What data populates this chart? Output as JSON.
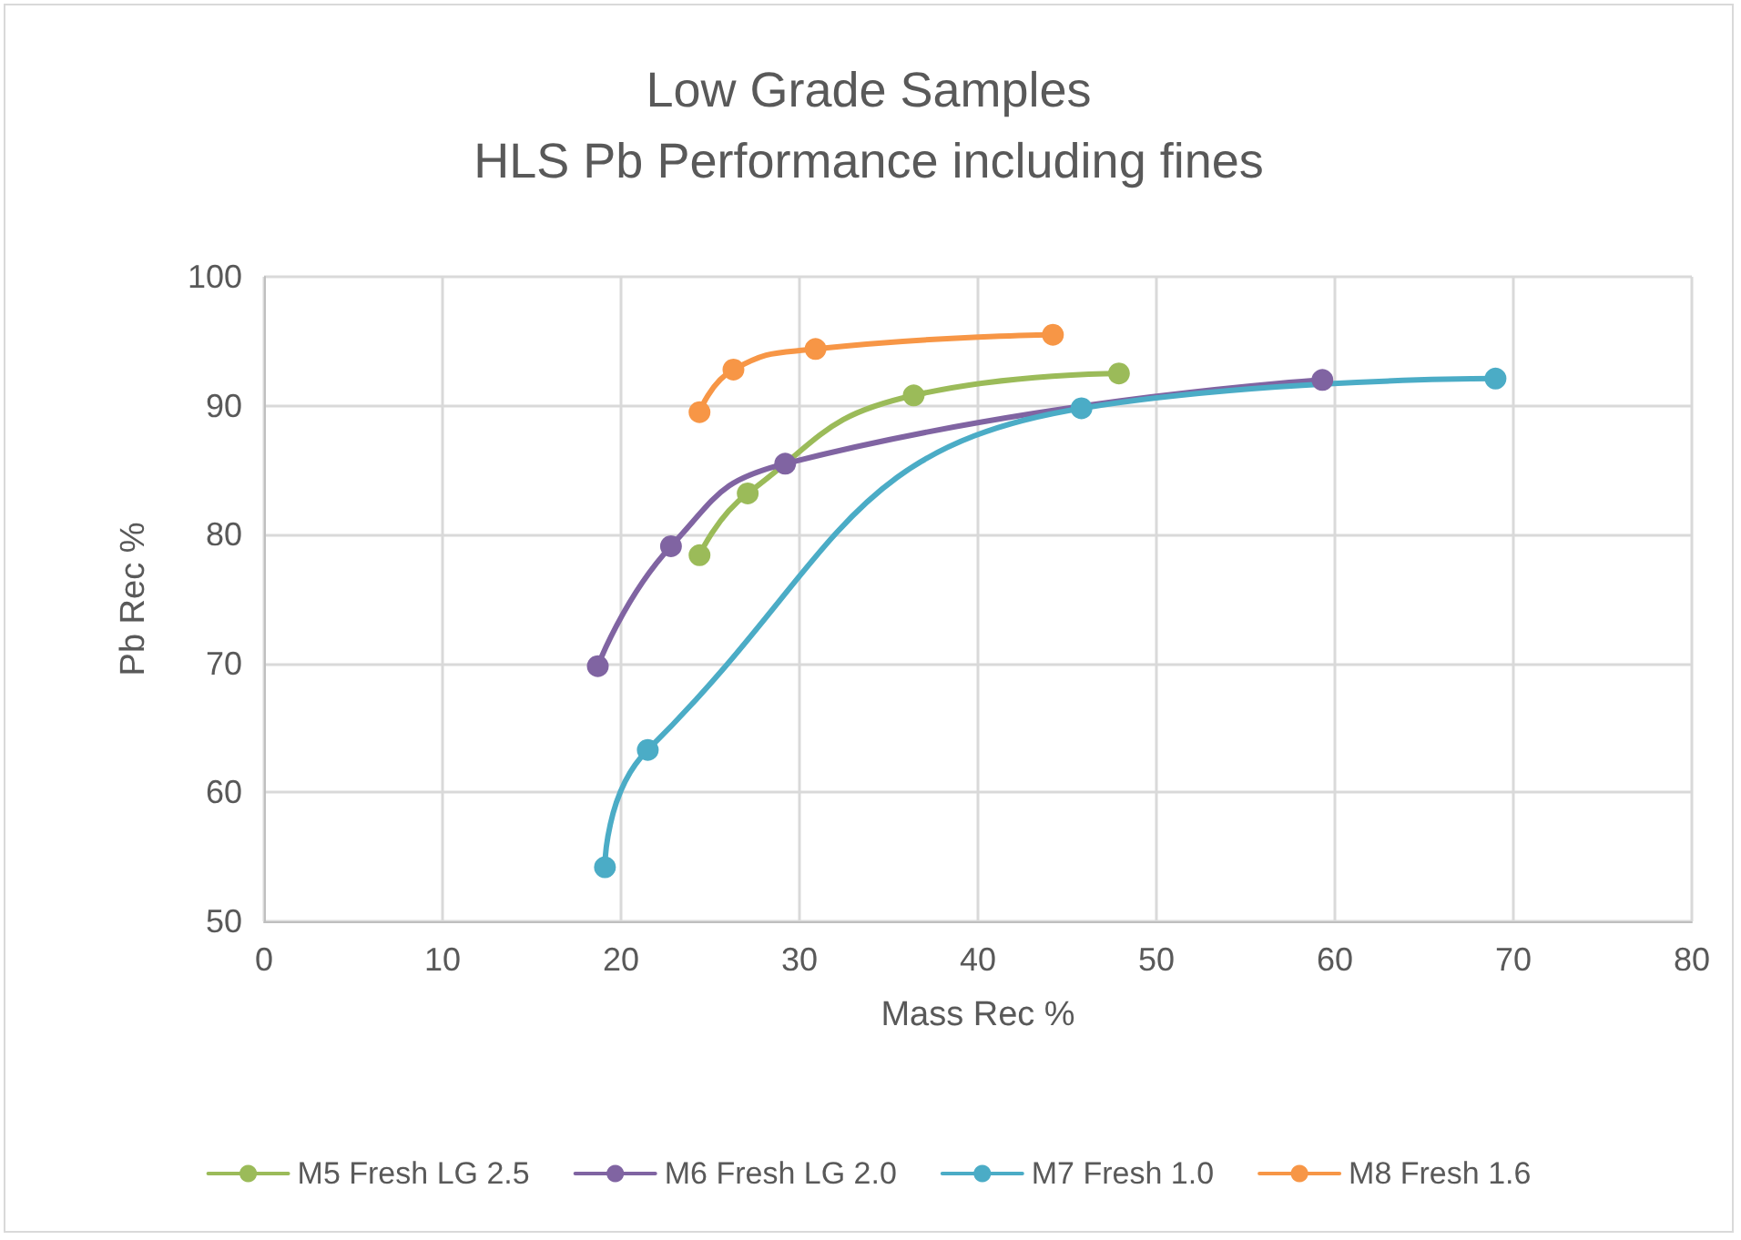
{
  "chart_data": {
    "type": "line",
    "title": "Low Grade Samples",
    "subtitle": "HLS Pb Performance including fines",
    "xlabel": "Mass Rec %",
    "ylabel": "Pb Rec %",
    "xlim": [
      0,
      80
    ],
    "xticks": [
      0,
      10,
      20,
      30,
      40,
      50,
      60,
      70,
      80
    ],
    "ylim": [
      50,
      100
    ],
    "yticks": [
      50,
      60,
      70,
      80,
      90,
      100
    ],
    "grid": true,
    "legend": "bottom",
    "marker": "circle",
    "series": [
      {
        "name": "M5 Fresh LG 2.5",
        "color": "#9bbb59",
        "x": [
          24.4,
          27.1,
          36.4,
          47.9
        ],
        "values": [
          78.4,
          83.2,
          90.8,
          92.5
        ]
      },
      {
        "name": "M6 Fresh LG 2.0",
        "color": "#8064a2",
        "x": [
          18.7,
          22.8,
          29.2,
          59.3
        ],
        "values": [
          69.8,
          79.1,
          85.5,
          92.0
        ]
      },
      {
        "name": "M7 Fresh 1.0",
        "color": "#4bacc6",
        "x": [
          19.1,
          21.5,
          45.8,
          69.0
        ],
        "values": [
          54.2,
          63.3,
          89.8,
          92.1
        ]
      },
      {
        "name": "M8 Fresh 1.6",
        "color": "#f79646",
        "x": [
          24.4,
          26.3,
          30.9,
          44.2
        ],
        "values": [
          89.5,
          92.8,
          94.4,
          95.5
        ]
      }
    ]
  }
}
